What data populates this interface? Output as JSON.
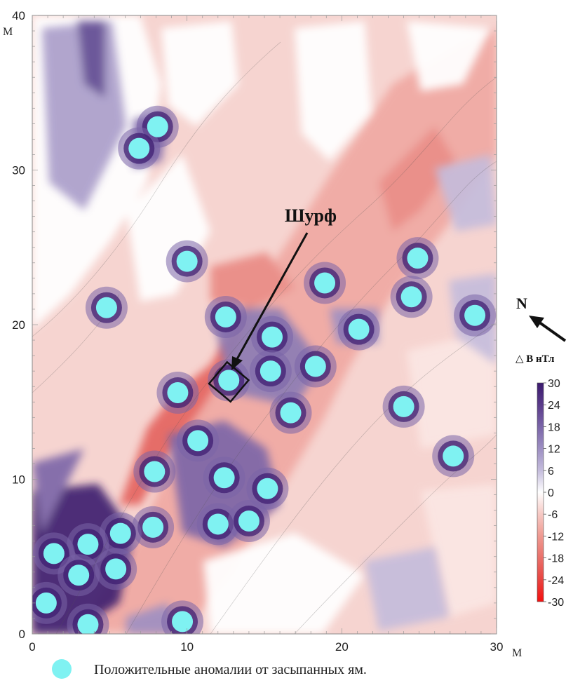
{
  "map": {
    "annotation_label": "Шурф",
    "north_label": "N",
    "x_unit": "М",
    "y_unit": "М",
    "x_ticks": [
      0,
      10,
      20,
      30
    ],
    "y_ticks": [
      0,
      10,
      20,
      30,
      40
    ],
    "x_range": [
      0,
      30
    ],
    "y_range": [
      0,
      40
    ],
    "pit_marker": {
      "x": 12.7,
      "y": 16.3
    },
    "anomalies": [
      {
        "x": 8.1,
        "y": 32.8
      },
      {
        "x": 6.9,
        "y": 31.4
      },
      {
        "x": 10.0,
        "y": 24.1
      },
      {
        "x": 4.8,
        "y": 21.1
      },
      {
        "x": 12.5,
        "y": 20.5
      },
      {
        "x": 15.5,
        "y": 19.2
      },
      {
        "x": 15.4,
        "y": 17.0
      },
      {
        "x": 12.7,
        "y": 16.4
      },
      {
        "x": 9.4,
        "y": 15.6
      },
      {
        "x": 18.3,
        "y": 17.3
      },
      {
        "x": 16.7,
        "y": 14.3
      },
      {
        "x": 18.9,
        "y": 22.7
      },
      {
        "x": 21.1,
        "y": 19.7
      },
      {
        "x": 24.9,
        "y": 24.3
      },
      {
        "x": 24.5,
        "y": 21.8
      },
      {
        "x": 28.6,
        "y": 20.6
      },
      {
        "x": 24.0,
        "y": 14.7
      },
      {
        "x": 27.2,
        "y": 11.5
      },
      {
        "x": 10.7,
        "y": 12.5
      },
      {
        "x": 7.9,
        "y": 10.5
      },
      {
        "x": 12.4,
        "y": 10.1
      },
      {
        "x": 15.2,
        "y": 9.4
      },
      {
        "x": 7.8,
        "y": 6.9
      },
      {
        "x": 12.0,
        "y": 7.1
      },
      {
        "x": 14.0,
        "y": 7.3
      },
      {
        "x": 5.7,
        "y": 6.5
      },
      {
        "x": 3.6,
        "y": 5.8
      },
      {
        "x": 1.4,
        "y": 5.2
      },
      {
        "x": 5.4,
        "y": 4.2
      },
      {
        "x": 3.0,
        "y": 3.8
      },
      {
        "x": 0.9,
        "y": 2.0
      },
      {
        "x": 3.6,
        "y": 0.6
      },
      {
        "x": 9.7,
        "y": 0.8
      }
    ]
  },
  "scale": {
    "title": "△ В нТл",
    "labels": [
      "30",
      "24",
      "18",
      "12",
      "6",
      "0",
      "-6",
      "-12",
      "-18",
      "-24",
      "-30"
    ],
    "colors": [
      "#3b1a6e",
      "#5a3b8a",
      "#7a65a8",
      "#9d8fc2",
      "#c4bcdc",
      "#ffffff",
      "#f6c9c4",
      "#ef9a91",
      "#e9706a",
      "#e84440",
      "#f40f0f"
    ]
  },
  "legend": {
    "text": "Положительные аномалии от засыпанных ям.",
    "marker_color": "#7ff2f2"
  },
  "colors": {
    "anomaly_fill": "#7ff2f2",
    "neg_fill": "#f3b9b5",
    "neg_strong": "#e4544f",
    "pos_fill": "#b8b0d6",
    "pos_strong": "#3b1a6e"
  }
}
